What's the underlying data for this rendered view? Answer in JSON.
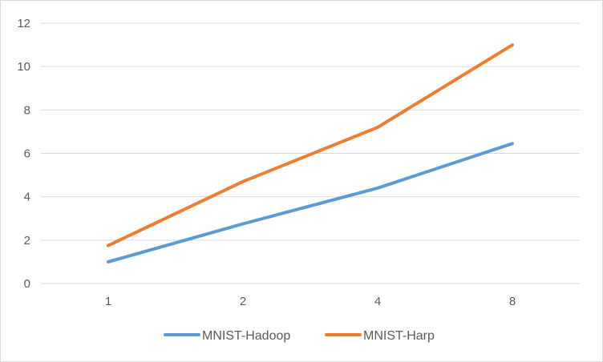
{
  "chart_data": {
    "type": "line",
    "categories": [
      "1",
      "2",
      "4",
      "8"
    ],
    "series": [
      {
        "name": "MNIST-Hadoop",
        "values": [
          1.0,
          2.75,
          4.4,
          6.45
        ],
        "color": "#5b9bd5"
      },
      {
        "name": "MNIST-Harp",
        "values": [
          1.75,
          4.7,
          7.2,
          11.0
        ],
        "color": "#ed7d31"
      }
    ],
    "title": "",
    "xlabel": "",
    "ylabel": "",
    "ylim": [
      0,
      12
    ],
    "yticks": [
      "0",
      "2",
      "4",
      "6",
      "8",
      "10",
      "12"
    ],
    "grid": true,
    "legend": "bottom"
  }
}
